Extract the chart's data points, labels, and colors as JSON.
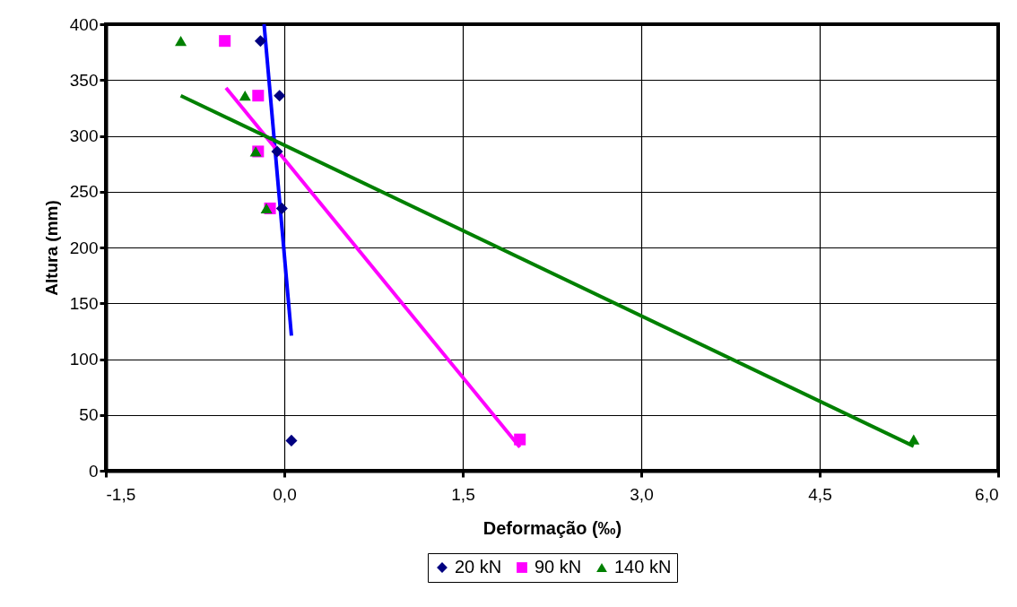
{
  "chart_data": {
    "type": "scatter",
    "xlabel": "Deformação (‰)",
    "ylabel": "Altura (mm)",
    "xlim": [
      -1.5,
      6.0
    ],
    "ylim": [
      0,
      400
    ],
    "xticks": [
      {
        "value": -1.5,
        "label": "-1,5"
      },
      {
        "value": 0,
        "label": "0,0"
      },
      {
        "value": 1.5,
        "label": "1,5"
      },
      {
        "value": 3,
        "label": "3,0"
      },
      {
        "value": 4.5,
        "label": "4,5"
      },
      {
        "value": 6,
        "label": "6,0"
      }
    ],
    "yticks": [
      0,
      50,
      100,
      150,
      200,
      250,
      300,
      350,
      400
    ],
    "grid": true,
    "legend": "bottom",
    "series": [
      {
        "name": "20 kN",
        "marker": "diamond",
        "color": "#000080",
        "x": [
          -0.2,
          -0.04,
          -0.06,
          -0.02,
          0.06
        ],
        "values": [
          385,
          336,
          286,
          235,
          27
        ]
      },
      {
        "name": "90 kN",
        "marker": "square",
        "color": "#ff00ff",
        "x": [
          -0.5,
          -0.22,
          -0.22,
          -0.12,
          1.98
        ],
        "values": [
          385,
          336,
          286,
          235,
          28
        ]
      },
      {
        "name": "140 kN",
        "marker": "triangle",
        "color": "#008000",
        "x": [
          -0.87,
          -0.33,
          -0.24,
          -0.15,
          5.29
        ],
        "values": [
          385,
          336,
          286,
          235,
          28
        ]
      },
      {
        "type": "line",
        "color": "#0000ff",
        "x": [
          -0.17,
          0.06
        ],
        "values": [
          400,
          121
        ]
      },
      {
        "type": "line",
        "color": "#ff00ff",
        "x": [
          -0.49,
          1.98
        ],
        "values": [
          343,
          21
        ]
      },
      {
        "type": "line",
        "color": "#008000",
        "x": [
          -0.87,
          5.29
        ],
        "values": [
          336,
          22
        ]
      }
    ]
  }
}
